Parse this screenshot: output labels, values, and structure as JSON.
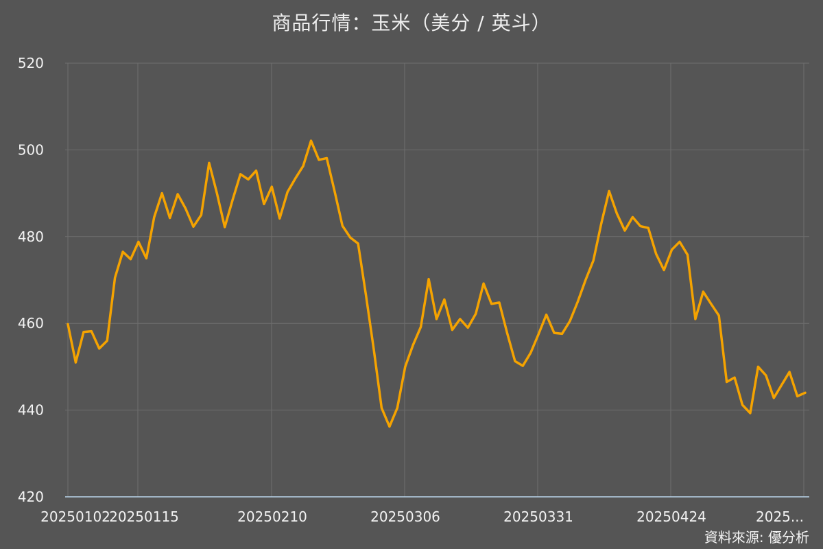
{
  "chart_data": {
    "type": "line",
    "title": "商品行情：玉米（美分 / 英斗）",
    "xlabel": "",
    "ylabel": "",
    "ylim": [
      420,
      520
    ],
    "yticks": [
      "520",
      "500",
      "480",
      "460",
      "440",
      "420"
    ],
    "xticks": [
      "20250102",
      "20250115",
      "20250210",
      "20250306",
      "20250331",
      "20250424",
      "2025..."
    ],
    "grid": true,
    "line_color": "#f5a300",
    "series": [
      {
        "values": [
          459.8,
          451.0,
          458.0,
          458.2,
          454.2,
          456.0,
          470.5,
          476.5,
          474.8,
          478.8,
          475.0,
          484.5,
          490.0,
          484.3,
          489.8,
          486.5,
          482.3,
          485.0,
          497.0,
          490.0,
          482.2,
          488.5,
          494.4,
          493.2,
          495.2,
          487.5,
          491.5,
          484.2,
          490.3,
          493.4,
          496.3,
          502.1,
          497.7,
          498.1,
          490.5,
          482.5,
          479.8,
          478.4,
          466.5,
          454.0,
          440.5,
          436.2,
          440.5,
          450.0,
          455.0,
          459.2,
          470.2,
          461.0,
          465.5,
          458.5,
          461.0,
          459.0,
          462.2,
          469.2,
          464.5,
          464.8,
          457.8,
          451.3,
          450.2,
          453.2,
          457.5,
          462.0,
          457.8,
          457.6,
          460.5,
          465.0,
          470.0,
          474.5,
          483.0,
          490.5,
          485.3,
          481.4,
          484.5,
          482.4,
          482.0,
          476.0,
          472.3,
          477.0,
          478.8,
          475.8,
          461.0,
          467.3,
          464.5,
          461.8,
          446.5,
          447.5,
          441.2,
          439.3,
          450.0,
          448.0,
          442.8,
          445.8,
          448.8,
          443.2,
          444.0
        ]
      }
    ]
  },
  "source_note": "資料來源: 優分析"
}
